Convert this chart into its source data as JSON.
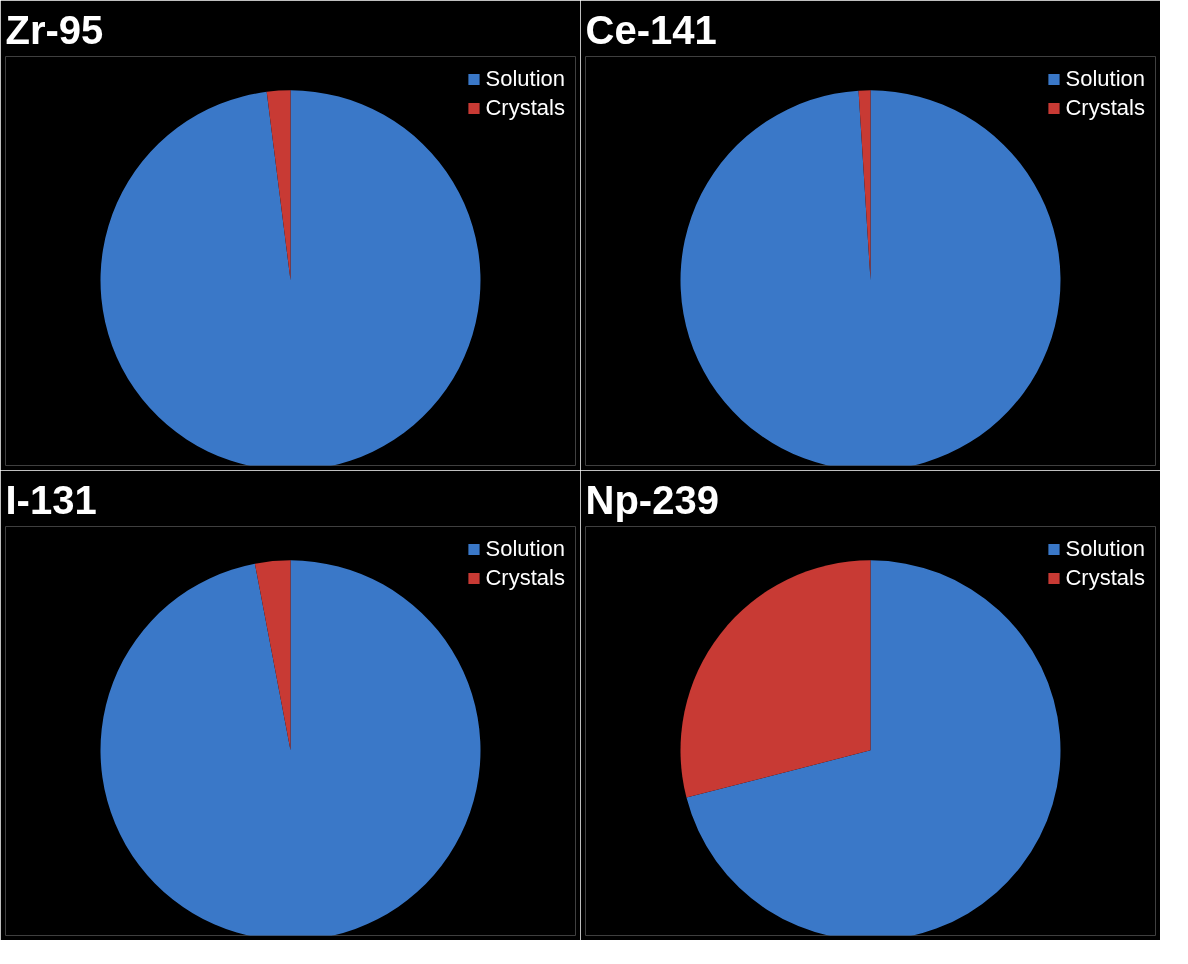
{
  "chart_data": [
    {
      "type": "pie",
      "title": "Zr-95",
      "categories": [
        "Solution",
        "Crystals"
      ],
      "values": [
        98,
        2
      ],
      "colors": [
        "#3a78c8",
        "#c83a34"
      ],
      "legend": "top right"
    },
    {
      "type": "pie",
      "title": "Ce-141",
      "categories": [
        "Solution",
        "Crystals"
      ],
      "values": [
        99,
        1
      ],
      "colors": [
        "#3a78c8",
        "#c83a34"
      ],
      "legend": "top right"
    },
    {
      "type": "pie",
      "title": "I-131",
      "categories": [
        "Solution",
        "Crystals"
      ],
      "values": [
        97,
        3
      ],
      "colors": [
        "#3a78c8",
        "#c83a34"
      ],
      "legend": "top right"
    },
    {
      "type": "pie",
      "title": "Np-239",
      "categories": [
        "Solution",
        "Crystals"
      ],
      "values": [
        71,
        29
      ],
      "colors": [
        "#3a78c8",
        "#c83a34"
      ],
      "legend": "top right"
    }
  ]
}
